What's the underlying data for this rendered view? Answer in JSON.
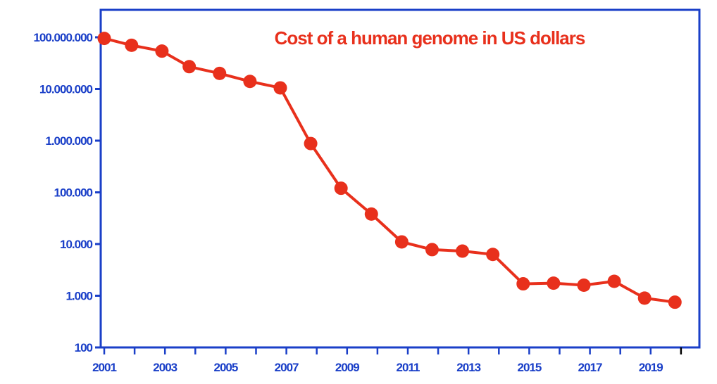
{
  "chart_data": {
    "type": "line",
    "title": "Cost of a human genome in US dollars",
    "xlabel": "",
    "ylabel": "",
    "yscale": "log",
    "ylim": [
      100,
      200000000
    ],
    "xlim": [
      2001,
      2020
    ],
    "y_ticks": [
      {
        "value": 100,
        "label": "100"
      },
      {
        "value": 1000,
        "label": "1.000"
      },
      {
        "value": 10000,
        "label": "10.000"
      },
      {
        "value": 100000,
        "label": "100.000"
      },
      {
        "value": 1000000,
        "label": "1.000.000"
      },
      {
        "value": 10000000,
        "label": "10.000.000"
      },
      {
        "value": 100000000,
        "label": "100.000.000"
      }
    ],
    "x_ticks": [
      {
        "value": 2001,
        "label": "2001"
      },
      {
        "value": 2003,
        "label": "2003"
      },
      {
        "value": 2005,
        "label": "2005"
      },
      {
        "value": 2007,
        "label": "2007"
      },
      {
        "value": 2009,
        "label": "2009"
      },
      {
        "value": 2011,
        "label": "2011"
      },
      {
        "value": 2013,
        "label": "2013"
      },
      {
        "value": 2015,
        "label": "2015"
      },
      {
        "value": 2017,
        "label": "2017"
      },
      {
        "value": 2019,
        "label": "2019"
      }
    ],
    "series": [
      {
        "name": "Cost of a human genome",
        "color": "#e8301c",
        "points": [
          {
            "x": 2001.0,
            "y": 95000000
          },
          {
            "x": 2001.9,
            "y": 70000000
          },
          {
            "x": 2002.9,
            "y": 54000000
          },
          {
            "x": 2003.8,
            "y": 27000000
          },
          {
            "x": 2004.8,
            "y": 20000000
          },
          {
            "x": 2005.8,
            "y": 14000000
          },
          {
            "x": 2006.8,
            "y": 10500000
          },
          {
            "x": 2007.8,
            "y": 880000
          },
          {
            "x": 2008.8,
            "y": 120000
          },
          {
            "x": 2009.8,
            "y": 38000
          },
          {
            "x": 2010.8,
            "y": 11000
          },
          {
            "x": 2011.8,
            "y": 7800
          },
          {
            "x": 2012.8,
            "y": 7300
          },
          {
            "x": 2013.8,
            "y": 6300
          },
          {
            "x": 2014.8,
            "y": 1700
          },
          {
            "x": 2015.8,
            "y": 1750
          },
          {
            "x": 2016.8,
            "y": 1600
          },
          {
            "x": 2017.8,
            "y": 1900
          },
          {
            "x": 2018.8,
            "y": 900
          },
          {
            "x": 2019.8,
            "y": 750
          }
        ]
      }
    ],
    "colors": {
      "axis": "#1a3fc8",
      "tick_label": "#1a3fc8",
      "series": "#e8301c",
      "title": "#e8301c"
    }
  }
}
